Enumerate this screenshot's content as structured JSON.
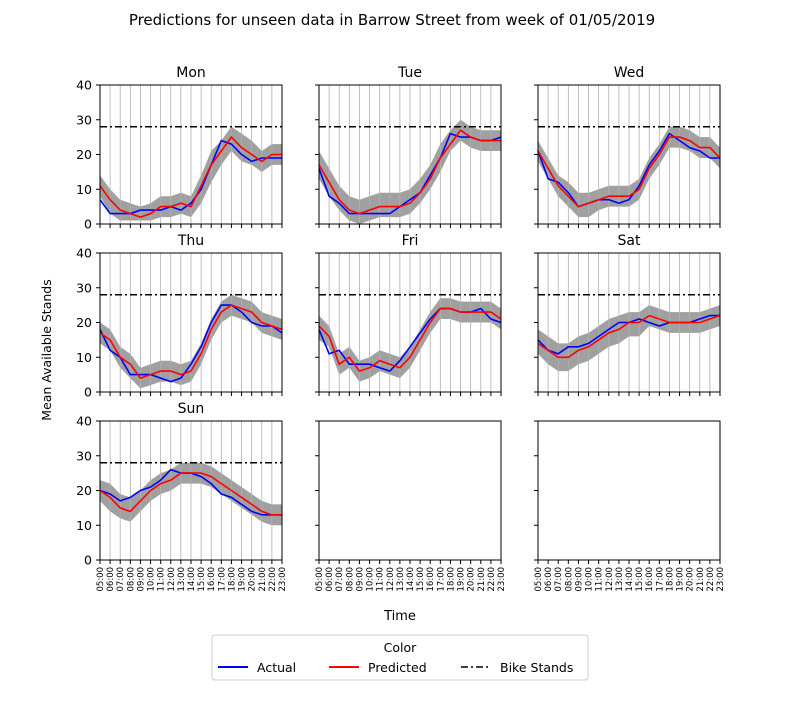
{
  "figure": {
    "title": "Predictions for unseen data in Barrow Street from week of 01/05/2019",
    "ylabel": "Mean Available Stands",
    "xlabel": "Time"
  },
  "legend": {
    "title": "Color",
    "entries": [
      {
        "label": "Actual",
        "color": "#0000ff",
        "style": "solid"
      },
      {
        "label": "Predicted",
        "color": "#ff0000",
        "style": "solid"
      },
      {
        "label": "Bike Stands",
        "color": "#000000",
        "style": "dashdot"
      }
    ]
  },
  "chart_data": {
    "type": "line",
    "x": [
      "05:00",
      "06:00",
      "07:00",
      "08:00",
      "09:00",
      "10:00",
      "11:00",
      "12:00",
      "13:00",
      "14:00",
      "15:00",
      "16:00",
      "17:00",
      "18:00",
      "19:00",
      "20:00",
      "21:00",
      "22:00",
      "23:00"
    ],
    "ylim": [
      0,
      40
    ],
    "yticks": [
      0,
      10,
      20,
      30,
      40
    ],
    "grid": "vertical lines at each hour",
    "legend_position": "bottom-center",
    "bike_stands": 28,
    "band_color": "#a0a0a0",
    "panels": [
      {
        "title": "Mon",
        "actual": [
          7,
          3,
          3,
          3,
          4,
          4,
          4,
          5,
          4,
          6,
          10,
          17,
          24,
          23,
          20,
          18,
          19,
          19,
          19
        ],
        "predicted": [
          11,
          7,
          4,
          3,
          2,
          3,
          5,
          5,
          6,
          5,
          11,
          17,
          21,
          25,
          22,
          20,
          18,
          20,
          20
        ],
        "band_low": [
          8,
          3,
          1,
          1,
          1,
          1,
          2,
          2,
          3,
          2,
          6,
          12,
          17,
          21,
          18,
          17,
          15,
          17,
          17
        ],
        "band_high": [
          14,
          10,
          7,
          6,
          5,
          6,
          8,
          8,
          9,
          8,
          14,
          21,
          24,
          28,
          26,
          24,
          21,
          23,
          23
        ]
      },
      {
        "title": "Tue",
        "actual": [
          16,
          8,
          6,
          3,
          3,
          3,
          3,
          3,
          5,
          7,
          9,
          14,
          19,
          26,
          25,
          25,
          24,
          24,
          25
        ],
        "predicted": [
          17,
          12,
          7,
          4,
          3,
          4,
          5,
          5,
          5,
          6,
          9,
          13,
          19,
          23,
          27,
          25,
          24,
          24,
          24
        ],
        "band_low": [
          13,
          8,
          4,
          1,
          0,
          1,
          2,
          2,
          2,
          3,
          6,
          10,
          15,
          21,
          24,
          22,
          21,
          21,
          21
        ],
        "band_high": [
          21,
          16,
          11,
          8,
          7,
          8,
          9,
          9,
          9,
          10,
          13,
          17,
          23,
          27,
          30,
          28,
          27,
          27,
          27
        ]
      },
      {
        "title": "Wed",
        "actual": [
          21,
          13,
          12,
          9,
          5,
          6,
          7,
          7,
          6,
          7,
          11,
          17,
          21,
          26,
          24,
          22,
          21,
          19,
          19
        ],
        "predicted": [
          21,
          16,
          11,
          8,
          5,
          6,
          7,
          8,
          8,
          8,
          10,
          16,
          20,
          25,
          25,
          24,
          22,
          22,
          19
        ],
        "band_low": [
          18,
          13,
          8,
          5,
          2,
          2,
          4,
          5,
          5,
          5,
          7,
          13,
          17,
          22,
          22,
          21,
          19,
          19,
          16
        ],
        "band_high": [
          24,
          19,
          14,
          12,
          9,
          9,
          10,
          11,
          11,
          11,
          13,
          19,
          23,
          28,
          28,
          27,
          25,
          25,
          22
        ]
      },
      {
        "title": "Thu",
        "actual": [
          18,
          12,
          10,
          5,
          5,
          5,
          4,
          3,
          4,
          8,
          13,
          20,
          25,
          25,
          23,
          20,
          19,
          19,
          17
        ],
        "predicted": [
          17,
          15,
          10,
          8,
          4,
          5,
          6,
          6,
          5,
          6,
          11,
          18,
          23,
          25,
          24,
          23,
          20,
          19,
          18
        ],
        "band_low": [
          14,
          12,
          7,
          4,
          1,
          2,
          3,
          3,
          2,
          3,
          8,
          15,
          20,
          22,
          21,
          20,
          17,
          16,
          15
        ],
        "band_high": [
          20,
          18,
          13,
          11,
          7,
          8,
          9,
          9,
          8,
          9,
          14,
          21,
          26,
          28,
          27,
          26,
          23,
          22,
          21
        ]
      },
      {
        "title": "Fri",
        "actual": [
          18,
          11,
          12,
          8,
          8,
          8,
          7,
          6,
          9,
          13,
          17,
          21,
          24,
          24,
          23,
          23,
          24,
          21,
          20
        ],
        "predicted": [
          19,
          16,
          8,
          10,
          6,
          7,
          9,
          8,
          7,
          10,
          15,
          20,
          24,
          24,
          23,
          23,
          23,
          23,
          21
        ],
        "band_low": [
          15,
          13,
          5,
          7,
          3,
          4,
          6,
          5,
          4,
          7,
          12,
          17,
          21,
          21,
          20,
          20,
          20,
          20,
          18
        ],
        "band_high": [
          22,
          19,
          11,
          13,
          9,
          10,
          12,
          11,
          10,
          13,
          18,
          23,
          27,
          27,
          26,
          26,
          26,
          26,
          24
        ]
      },
      {
        "title": "Sat",
        "actual": [
          15,
          12,
          11,
          13,
          13,
          14,
          16,
          18,
          20,
          20,
          21,
          20,
          19,
          20,
          20,
          20,
          21,
          22,
          22
        ],
        "predicted": [
          14,
          12,
          10,
          10,
          12,
          13,
          15,
          17,
          18,
          20,
          20,
          22,
          21,
          20,
          20,
          20,
          20,
          21,
          22
        ],
        "band_low": [
          11,
          8,
          6,
          6,
          8,
          9,
          11,
          13,
          14,
          16,
          16,
          19,
          18,
          17,
          17,
          17,
          17,
          18,
          19
        ],
        "band_high": [
          18,
          16,
          14,
          14,
          16,
          17,
          19,
          21,
          22,
          23,
          23,
          25,
          24,
          23,
          23,
          23,
          23,
          24,
          25
        ]
      },
      {
        "title": "Sun",
        "actual": [
          20,
          19,
          17,
          18,
          20,
          21,
          23,
          26,
          25,
          25,
          24,
          22,
          19,
          18,
          16,
          14,
          13,
          13,
          13
        ],
        "predicted": [
          20,
          18,
          15,
          14,
          17,
          20,
          22,
          23,
          25,
          25,
          25,
          24,
          22,
          20,
          18,
          16,
          14,
          13,
          13
        ],
        "band_low": [
          17,
          14,
          12,
          11,
          14,
          17,
          19,
          20,
          22,
          22,
          22,
          21,
          19,
          17,
          15,
          13,
          11,
          10,
          10
        ],
        "band_high": [
          23,
          22,
          19,
          18,
          20,
          23,
          25,
          26,
          28,
          28,
          28,
          27,
          25,
          23,
          21,
          19,
          17,
          16,
          16
        ]
      },
      {
        "title": ""
      },
      {
        "title": ""
      }
    ]
  }
}
